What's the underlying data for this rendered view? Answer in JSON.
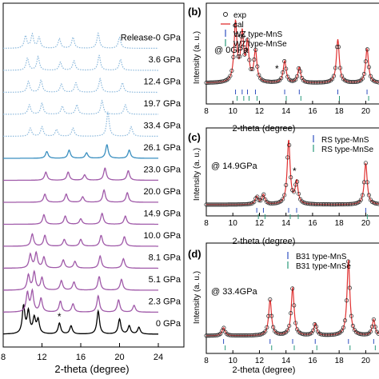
{
  "chart_data": [
    {
      "type": "line",
      "panel": "a",
      "xlabel": "2-theta (degree)",
      "x_ticks": [
        8,
        12,
        16,
        20,
        24
      ],
      "xlim": [
        8,
        24
      ],
      "series": [
        {
          "name": "0 GPa",
          "color": "#000000",
          "style": "solid",
          "offset": 0,
          "peaks": [
            [
              10.1,
              1.0
            ],
            [
              10.6,
              0.8
            ],
            [
              11.2,
              0.55
            ],
            [
              11.6,
              0.5
            ],
            [
              13.8,
              0.4
            ],
            [
              15.0,
              0.3
            ],
            [
              17.8,
              0.85
            ],
            [
              20.0,
              0.55
            ],
            [
              21.0,
              0.3
            ],
            [
              22.0,
              0.25
            ]
          ]
        },
        {
          "name": "2.3 GPa",
          "color": "#a05aa9",
          "style": "solid",
          "offset": 1,
          "peaks": [
            [
              10.5,
              0.7
            ],
            [
              11.0,
              0.75
            ],
            [
              11.9,
              0.5
            ],
            [
              13.9,
              0.4
            ],
            [
              15.2,
              0.3
            ],
            [
              17.8,
              0.6
            ],
            [
              19.9,
              0.45
            ],
            [
              21.5,
              0.25
            ]
          ]
        },
        {
          "name": "5.1 GPa",
          "color": "#a05aa9",
          "style": "solid",
          "offset": 2,
          "peaks": [
            [
              10.6,
              0.55
            ],
            [
              11.2,
              0.65
            ],
            [
              12.0,
              0.45
            ],
            [
              14.0,
              0.35
            ],
            [
              15.3,
              0.3
            ],
            [
              17.9,
              0.5
            ],
            [
              20.2,
              0.4
            ]
          ]
        },
        {
          "name": "8.1 GPa",
          "color": "#a05aa9",
          "style": "solid",
          "offset": 3,
          "peaks": [
            [
              10.8,
              0.5
            ],
            [
              11.4,
              0.55
            ],
            [
              12.2,
              0.4
            ],
            [
              14.2,
              0.3
            ],
            [
              15.4,
              0.25
            ],
            [
              18.0,
              0.45
            ],
            [
              20.4,
              0.35
            ]
          ]
        },
        {
          "name": "10.0 GPa",
          "color": "#a05aa9",
          "style": "solid",
          "offset": 4,
          "peaks": [
            [
              11.0,
              0.45
            ],
            [
              12.3,
              0.4
            ],
            [
              14.3,
              0.25
            ],
            [
              16.0,
              0.25
            ],
            [
              18.1,
              0.4
            ],
            [
              20.5,
              0.35
            ]
          ]
        },
        {
          "name": "14.9 GPa",
          "color": "#a05aa9",
          "style": "solid",
          "offset": 5,
          "peaks": [
            [
              12.2,
              0.35
            ],
            [
              14.4,
              0.3
            ],
            [
              16.0,
              0.2
            ],
            [
              18.2,
              0.4
            ],
            [
              20.6,
              0.3
            ]
          ]
        },
        {
          "name": "20.0 GPa",
          "color": "#a05aa9",
          "style": "solid",
          "offset": 6,
          "peaks": [
            [
              12.3,
              0.3
            ],
            [
              14.5,
              0.3
            ],
            [
              16.2,
              0.2
            ],
            [
              18.4,
              0.45
            ],
            [
              20.8,
              0.35
            ]
          ]
        },
        {
          "name": "23.0 GPa",
          "color": "#a05aa9",
          "style": "solid",
          "offset": 7,
          "peaks": [
            [
              12.4,
              0.3
            ],
            [
              14.7,
              0.3
            ],
            [
              16.4,
              0.2
            ],
            [
              18.5,
              0.45
            ],
            [
              20.9,
              0.35
            ]
          ]
        },
        {
          "name": "26.1 GPa",
          "color": "#3a8fc0",
          "style": "solid",
          "offset": 8,
          "peaks": [
            [
              12.5,
              0.25
            ],
            [
              14.8,
              0.3
            ],
            [
              16.6,
              0.2
            ],
            [
              18.7,
              0.5
            ],
            [
              21.0,
              0.3
            ]
          ]
        },
        {
          "name": "33.4 GPa",
          "color": "#8ab8dc",
          "style": "dotted",
          "offset": 9,
          "peaks": [
            [
              10.8,
              0.3
            ],
            [
              12.0,
              0.35
            ],
            [
              13.5,
              0.25
            ],
            [
              15.2,
              0.3
            ],
            [
              18.8,
              0.9
            ],
            [
              21.2,
              0.35
            ]
          ]
        },
        {
          "name": "19.7 GPa",
          "color": "#8ab8dc",
          "style": "dotted",
          "offset": 10,
          "peaks": [
            [
              10.7,
              0.35
            ],
            [
              12.0,
              0.4
            ],
            [
              14.1,
              0.3
            ],
            [
              15.6,
              0.35
            ],
            [
              18.2,
              0.5
            ],
            [
              20.6,
              0.35
            ]
          ]
        },
        {
          "name": "12.4 GPa",
          "color": "#8ab8dc",
          "style": "dotted",
          "offset": 11,
          "peaks": [
            [
              10.6,
              0.4
            ],
            [
              11.9,
              0.45
            ],
            [
              14.0,
              0.3
            ],
            [
              15.5,
              0.35
            ],
            [
              18.0,
              0.5
            ],
            [
              20.3,
              0.35
            ]
          ]
        },
        {
          "name": "3.6 GPa",
          "color": "#8ab8dc",
          "style": "dotted",
          "offset": 12,
          "peaks": [
            [
              10.5,
              0.45
            ],
            [
              11.6,
              0.5
            ],
            [
              13.9,
              0.3
            ],
            [
              15.3,
              0.35
            ],
            [
              17.9,
              0.55
            ],
            [
              20.1,
              0.4
            ]
          ]
        },
        {
          "name": "Release-0 GPa",
          "color": "#8ab8dc",
          "style": "dotted",
          "offset": 13,
          "peaks": [
            [
              10.3,
              0.45
            ],
            [
              11.0,
              0.5
            ],
            [
              11.7,
              0.4
            ],
            [
              13.8,
              0.35
            ],
            [
              15.2,
              0.4
            ],
            [
              17.8,
              0.55
            ],
            [
              20.0,
              0.4
            ]
          ]
        }
      ],
      "annotations": [
        "*"
      ]
    },
    {
      "type": "line",
      "panel": "b",
      "panel_label": "(b)",
      "pressure_label": "@ 0GPa",
      "ylabel": "Intensity (a. u.)",
      "xlabel": "2-theta (degree)",
      "x_ticks": [
        8,
        10,
        12,
        14,
        16,
        18,
        20
      ],
      "xlim": [
        8,
        21
      ],
      "legend": [
        "exp",
        "cal",
        "WZ type-MnS",
        "WZ type-MnSe"
      ],
      "annotations": [
        "*"
      ],
      "peaks": [
        [
          10.2,
          0.95
        ],
        [
          10.7,
          0.75
        ],
        [
          11.1,
          0.6
        ],
        [
          11.7,
          0.5
        ],
        [
          13.9,
          0.35
        ],
        [
          15.0,
          0.25
        ],
        [
          17.9,
          0.7
        ],
        [
          20.1,
          0.55
        ]
      ]
    },
    {
      "type": "line",
      "panel": "c",
      "panel_label": "(c)",
      "pressure_label": "@ 14.9GPa",
      "ylabel": "Intensity (a. u.)",
      "xlabel": "2-theta (degree)",
      "x_ticks": [
        8,
        10,
        12,
        14,
        16,
        18,
        20
      ],
      "xlim": [
        8,
        21
      ],
      "legend": [
        "RS type-MnS",
        "RS type-MnSe"
      ],
      "annotations": [
        "*"
      ],
      "peaks": [
        [
          11.8,
          0.12
        ],
        [
          12.3,
          0.15
        ],
        [
          14.2,
          1.0
        ],
        [
          14.8,
          0.35
        ],
        [
          20.0,
          0.65
        ]
      ]
    },
    {
      "type": "line",
      "panel": "d",
      "panel_label": "(d)",
      "pressure_label": "@ 33.4GPa",
      "ylabel": "Intensity (a. u.)",
      "xlabel": "2-theta (degree)",
      "x_ticks": [
        8,
        10,
        12,
        14,
        16,
        18,
        20
      ],
      "xlim": [
        8,
        21
      ],
      "legend": [
        "B31 type-MnS",
        "B31 type-MnSe"
      ],
      "peaks": [
        [
          9.3,
          0.1
        ],
        [
          12.8,
          0.45
        ],
        [
          14.5,
          0.6
        ],
        [
          16.2,
          0.15
        ],
        [
          18.7,
          0.95
        ],
        [
          20.6,
          0.2
        ]
      ]
    }
  ]
}
